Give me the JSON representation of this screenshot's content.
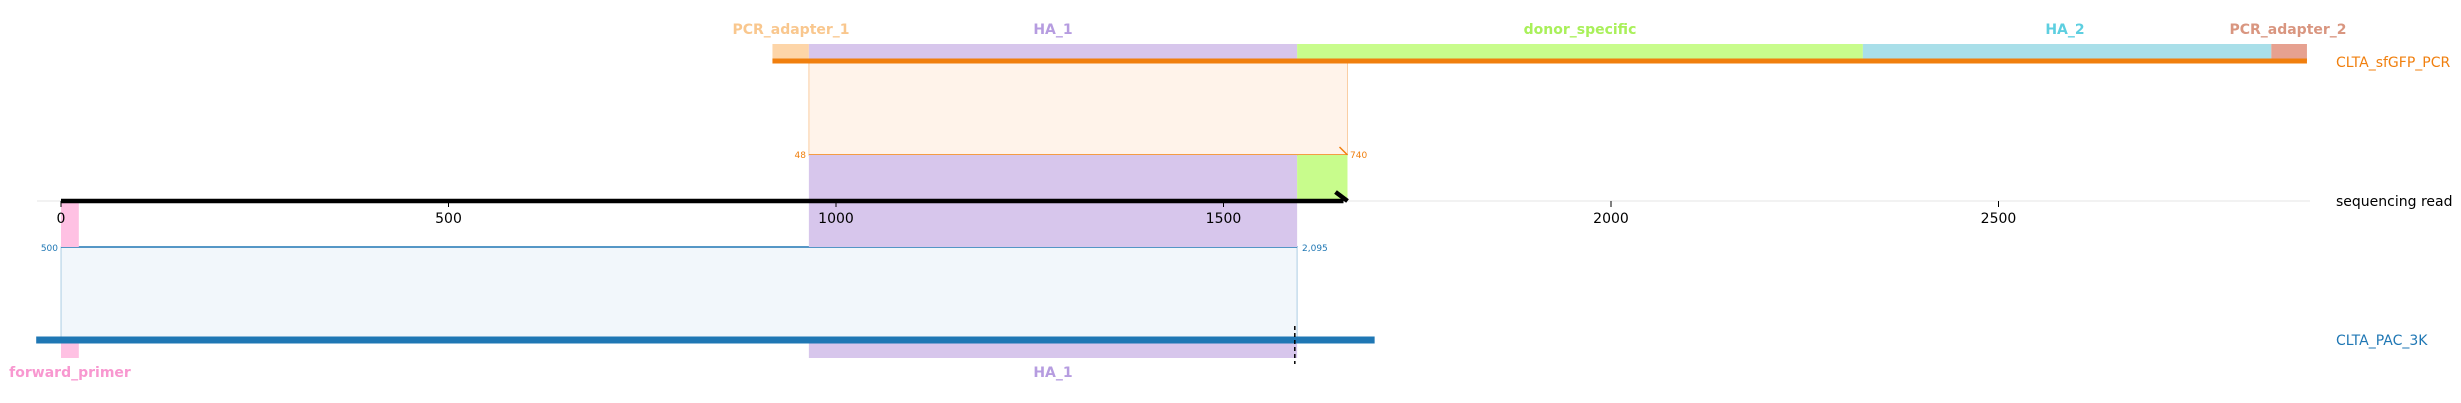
{
  "chart_data": {
    "type": "sequence-alignment-map",
    "reference": {
      "name": "sequencing read",
      "start": 0,
      "end": 1660,
      "color": "#000000",
      "ticks": [
        0,
        500,
        1000,
        1500,
        2000,
        2500
      ]
    },
    "sequences": [
      {
        "id": "top",
        "name": "CLTA_sfGFP_PCR",
        "color": "#f07f0e",
        "span_start": 918,
        "span_end": 2898,
        "features": [
          {
            "name": "PCR_adapter_1",
            "start": 918,
            "end": 965,
            "color": "#fdd5a8",
            "label_color": "#f9c78e",
            "show_label": true
          },
          {
            "name": "HA_1",
            "start": 965,
            "end": 1595,
            "color": "#d7c6ec",
            "label_color": "#b69ce0",
            "show_label": true
          },
          {
            "name": "donor_specific",
            "start": 1595,
            "end": 2325,
            "color": "#c8fc8c",
            "label_color": "#a9f05a",
            "show_label": true
          },
          {
            "name": "HA_2",
            "start": 2325,
            "end": 2852,
            "color": "#a9dfe9",
            "label_color": "#5dcfe0",
            "show_label": true
          },
          {
            "name": "PCR_adapter_2",
            "start": 2852,
            "end": 2898,
            "color": "#e6a190",
            "label_color": "#d99680",
            "show_label": true
          }
        ],
        "alignment": {
          "ref_start": 965,
          "ref_end": 1660,
          "q_start_label": "48",
          "q_end_label": "740",
          "fill": "#fff3ea"
        }
      },
      {
        "id": "bottom",
        "name": "CLTA_PAC_3K",
        "color": "#1f77b4",
        "span_start": -32,
        "span_end": 1695,
        "features": [
          {
            "name": "forward_primer",
            "start": 0,
            "end": 23,
            "color": "#ffc1e3",
            "label_color": "#f898d0",
            "show_label": true
          },
          {
            "name": "HA_1",
            "start": 965,
            "end": 1595,
            "color": "#d7c6ec",
            "label_color": "#b69ce0",
            "show_label": true
          }
        ],
        "alignment": {
          "ref_start": 0,
          "ref_end": 1595,
          "q_start_label": "500",
          "q_end_label": "2,095",
          "fill": "#f2f7fb"
        },
        "cut_marker": 1592
      }
    ]
  }
}
